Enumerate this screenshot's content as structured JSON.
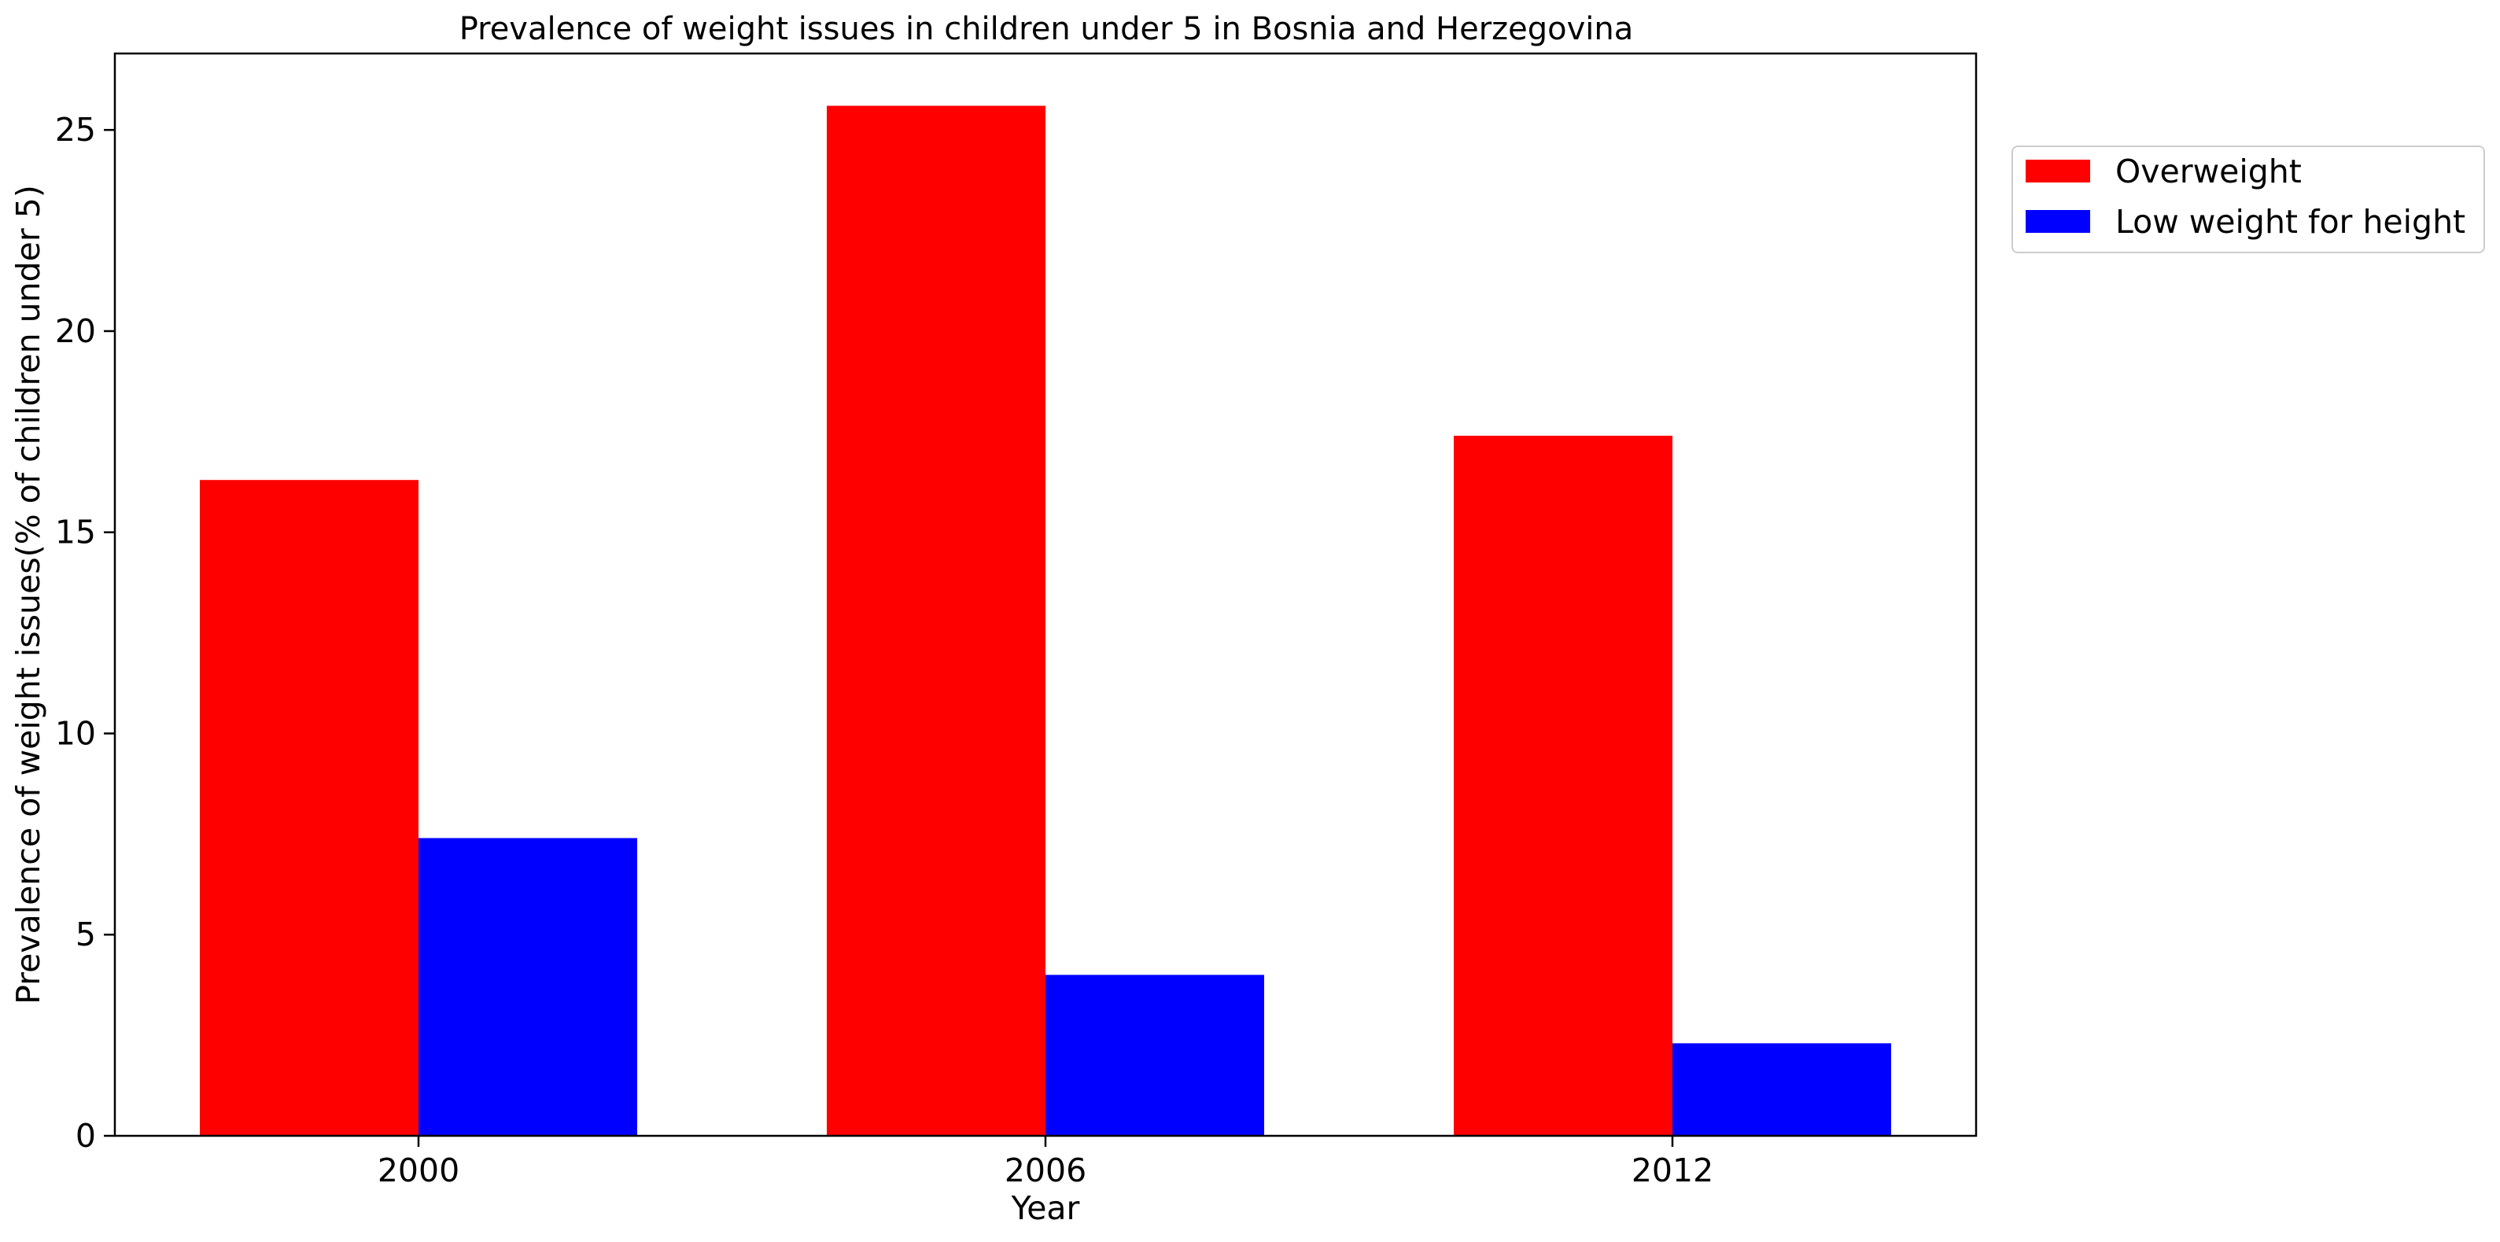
{
  "chart_data": {
    "type": "bar",
    "title": "Prevalence of weight issues in children under 5 in Bosnia and Herzegovina",
    "xlabel": "Year",
    "ylabel": "Prevalence of weight issues(% of children under 5)",
    "categories": [
      "2000",
      "2006",
      "2012"
    ],
    "series": [
      {
        "name": "Overweight",
        "color": "#ff0000",
        "values": [
          16.3,
          25.6,
          17.4
        ]
      },
      {
        "name": "Low weight for height",
        "color": "#0000ff",
        "values": [
          7.4,
          4.0,
          2.3
        ]
      }
    ],
    "ylim": [
      0,
      26.9
    ],
    "yticks": [
      0,
      5,
      10,
      15,
      20,
      25
    ],
    "grid": false,
    "legend_position": "outside top-right"
  }
}
